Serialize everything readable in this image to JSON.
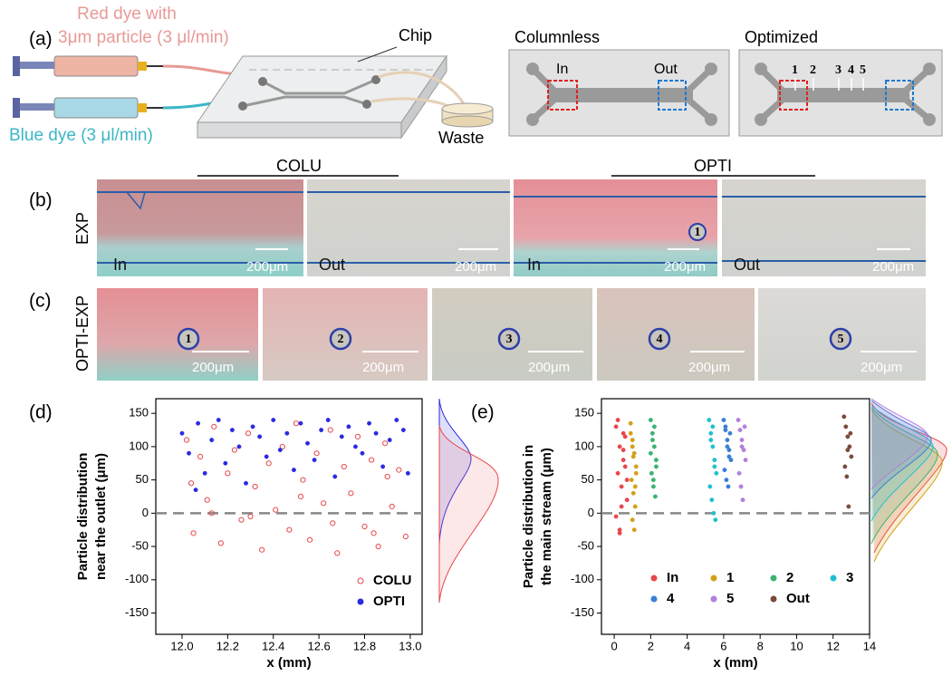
{
  "panel_a": {
    "label": "(a)",
    "red_dye": [
      "Red dye with",
      "3μm particle (3 μl/min)"
    ],
    "blue_dye": "Blue dye (3 μl/min)",
    "chip": "Chip",
    "waste": "Waste",
    "columnless": {
      "title": "Columnless",
      "in": "In",
      "out": "Out"
    },
    "optimized": {
      "title": "Optimized",
      "markers": [
        "1",
        "2",
        "3",
        "4",
        "5"
      ]
    }
  },
  "panel_b": {
    "label": "(b)",
    "row_label": "EXP",
    "groups": [
      "COLU",
      "OPTI"
    ],
    "images": [
      {
        "position": "In",
        "scale": "200μm"
      },
      {
        "position": "Out",
        "scale": "200μm"
      },
      {
        "position": "In",
        "scale": "200μm",
        "marker": "1"
      },
      {
        "position": "Out",
        "scale": "200μm"
      }
    ]
  },
  "panel_c": {
    "label": "(c)",
    "row_label": "OPTI-EXP",
    "images": [
      {
        "marker": "1",
        "scale": "200μm"
      },
      {
        "marker": "2",
        "scale": "200μm"
      },
      {
        "marker": "3",
        "scale": "200μm"
      },
      {
        "marker": "4",
        "scale": "200μm"
      },
      {
        "marker": "5",
        "scale": "200μm"
      }
    ]
  },
  "chart_data": [
    {
      "type": "scatter",
      "panel_label": "(d)",
      "ylabel": [
        "Particle distribution",
        "near the outlet (μm)"
      ],
      "xlabel": "x (mm)",
      "xlim": [
        11.885,
        13.052
      ],
      "ylim": [
        -182,
        172
      ],
      "xticks": [
        {
          "value": 12,
          "label": "12.0"
        },
        12.2,
        12.4,
        12.6,
        12.8,
        {
          "value": 13,
          "label": "13.0"
        }
      ],
      "yticks": [
        -150,
        -100,
        -50,
        0,
        50,
        100,
        150
      ],
      "series": [
        {
          "name": "COLU",
          "color": "#e8474b",
          "marker": "circle-open",
          "x": [
            12.02,
            12.05,
            12.08,
            12.11,
            12.14,
            12.17,
            12.2,
            12.23,
            12.26,
            12.29,
            12.32,
            12.35,
            12.38,
            12.41,
            12.44,
            12.47,
            12.5,
            12.53,
            12.56,
            12.59,
            12.62,
            12.65,
            12.68,
            12.71,
            12.74,
            12.77,
            12.8,
            12.83,
            12.86,
            12.89,
            12.92,
            12.95,
            12.98,
            12.04,
            12.3,
            12.52,
            12.66,
            12.84,
            12.9,
            12.13
          ],
          "values": [
            110,
            -30,
            85,
            20,
            130,
            -45,
            60,
            95,
            -10,
            120,
            40,
            -55,
            75,
            5,
            100,
            -25,
            135,
            50,
            -40,
            90,
            15,
            125,
            -60,
            70,
            30,
            115,
            -20,
            80,
            -50,
            105,
            10,
            65,
            -35,
            45,
            -5,
            25,
            -15,
            -30,
            55,
            0
          ]
        },
        {
          "name": "OPTI",
          "color": "#2a2ae0",
          "marker": "circle",
          "x": [
            12.0,
            12.03,
            12.07,
            12.1,
            12.13,
            12.16,
            12.19,
            12.22,
            12.25,
            12.28,
            12.31,
            12.34,
            12.37,
            12.4,
            12.43,
            12.46,
            12.49,
            12.52,
            12.55,
            12.58,
            12.61,
            12.64,
            12.67,
            12.7,
            12.73,
            12.76,
            12.79,
            12.82,
            12.85,
            12.88,
            12.91,
            12.94,
            12.97,
            12.99,
            12.06
          ],
          "values": [
            120,
            90,
            135,
            60,
            110,
            140,
            75,
            125,
            100,
            45,
            130,
            115,
            85,
            140,
            95,
            120,
            65,
            135,
            105,
            80,
            125,
            140,
            55,
            115,
            130,
            100,
            90,
            135,
            120,
            70,
            110,
            140,
            125,
            60,
            35
          ]
        }
      ]
    },
    {
      "type": "scatter",
      "panel_label": "(e)",
      "ylabel": [
        "Particle distribution in",
        "the main stream (μm)"
      ],
      "xlabel": "x (mm)",
      "xlim": [
        -0.7,
        14
      ],
      "ylim": [
        -182,
        172
      ],
      "xticks": [
        0,
        2,
        4,
        6,
        8,
        10,
        12,
        14
      ],
      "yticks": [
        -150,
        -100,
        -50,
        0,
        50,
        100,
        150
      ],
      "series": [
        {
          "name": "In",
          "color": "#e8474b",
          "marker": "circle",
          "x": [
            0.1,
            0.3,
            0.5,
            0.2,
            0.6,
            0.4,
            0.7,
            0.1,
            0.3,
            0.5,
            0.2,
            0.6,
            0.4,
            0.7,
            0.3,
            0.5
          ],
          "values": [
            130,
            100,
            80,
            60,
            115,
            40,
            20,
            -5,
            -25,
            95,
            140,
            70,
            10,
            50,
            -30,
            120
          ]
        },
        {
          "name": "1",
          "color": "#d4a017",
          "marker": "circle",
          "x": [
            0.9,
            1.0,
            1.1,
            1.2,
            0.95,
            1.05,
            1.15,
            1.0,
            1.1,
            0.9,
            1.2,
            1.05,
            1.0,
            1.15
          ],
          "values": [
            135,
            110,
            90,
            70,
            50,
            30,
            10,
            -10,
            -25,
            120,
            60,
            85,
            100,
            40
          ]
        },
        {
          "name": "2",
          "color": "#3cb371",
          "marker": "circle",
          "x": [
            2.0,
            2.1,
            2.2,
            2.3,
            2.05,
            2.15,
            2.25,
            2.1,
            2.2,
            2.0,
            2.3,
            2.15
          ],
          "values": [
            140,
            120,
            100,
            80,
            60,
            40,
            25,
            110,
            130,
            90,
            70,
            50
          ]
        },
        {
          "name": "3",
          "color": "#20c0d0",
          "marker": "circle",
          "x": [
            5.2,
            5.3,
            5.4,
            5.5,
            5.6,
            5.25,
            5.35,
            5.45,
            5.55,
            5.3,
            5.4,
            5.5
          ],
          "values": [
            140,
            120,
            100,
            80,
            60,
            40,
            20,
            0,
            -10,
            110,
            130,
            70
          ]
        },
        {
          "name": "4",
          "color": "#3a7fd5",
          "marker": "circle",
          "x": [
            6.0,
            6.1,
            6.2,
            6.3,
            6.4,
            6.05,
            6.15,
            6.25,
            6.35,
            6.2,
            6.1,
            6.3
          ],
          "values": [
            140,
            125,
            110,
            95,
            80,
            65,
            50,
            40,
            120,
            100,
            130,
            85
          ]
        },
        {
          "name": "5",
          "color": "#b57edc",
          "marker": "circle",
          "x": [
            6.8,
            6.9,
            7.0,
            7.1,
            7.2,
            6.85,
            6.95,
            7.05,
            7.15,
            7.0
          ],
          "values": [
            140,
            125,
            110,
            95,
            80,
            60,
            40,
            20,
            130,
            100
          ]
        },
        {
          "name": "Out",
          "color": "#7b4a3a",
          "marker": "circle",
          "x": [
            12.6,
            12.7,
            12.8,
            12.9,
            13.0,
            12.65,
            12.75,
            12.85,
            12.95,
            12.8
          ],
          "values": [
            145,
            130,
            115,
            100,
            85,
            70,
            55,
            10,
            120,
            95
          ]
        }
      ]
    }
  ]
}
